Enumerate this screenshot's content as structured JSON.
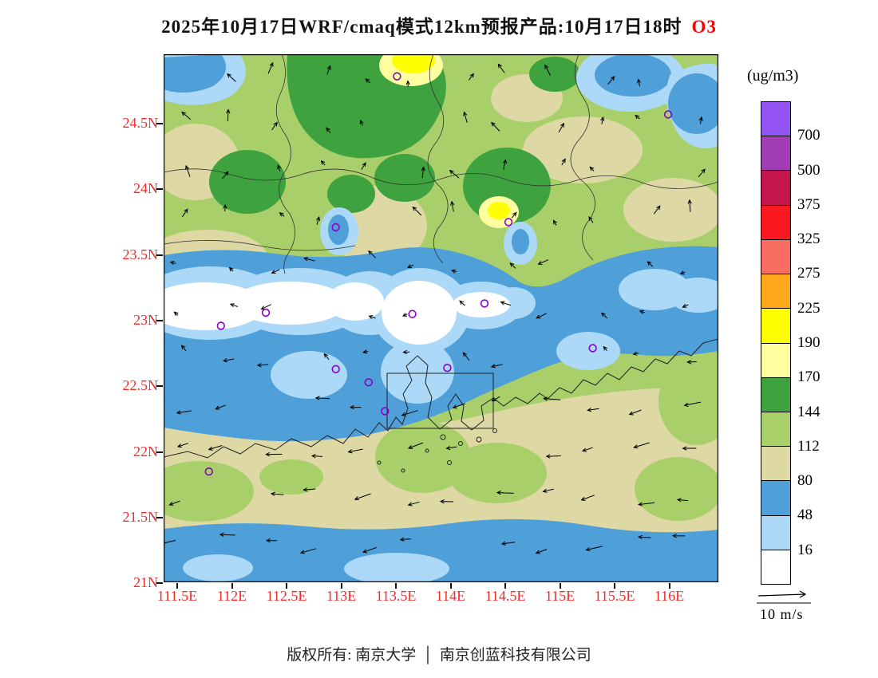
{
  "title": {
    "prefix": "2025年10月17日WRF/cmaq模式12km预报产品:10月17日18时",
    "species": "O3"
  },
  "colorbar": {
    "units_label": "(ug/m3)",
    "boundary_labels": [
      "700",
      "500",
      "375",
      "325",
      "275",
      "225",
      "190",
      "170",
      "144",
      "112",
      "80",
      "48",
      "16"
    ],
    "colors_top_to_bottom": [
      "#9454f3",
      "#a23cb4",
      "#c4164c",
      "#fb1921",
      "#f96c62",
      "#ffa81e",
      "#ffff00",
      "#ffffa0",
      "#3ea23e",
      "#a8cf6a",
      "#ddd8a4",
      "#4f9fd9",
      "#abd9f7",
      "#ffffff"
    ]
  },
  "axes": {
    "lat_labels": [
      "24.5N",
      "24N",
      "23.5N",
      "23N",
      "22.5N",
      "22N",
      "21.5N",
      "21N"
    ],
    "lon_labels": [
      "111.5E",
      "112E",
      "112.5E",
      "113E",
      "113.5E",
      "114E",
      "114.5E",
      "115E",
      "115.5E",
      "116E"
    ],
    "label_color": "#f22a2a"
  },
  "wind_legend": {
    "label": "10 m/s"
  },
  "footer": {
    "text_left": "版权所有: 南京大学",
    "separator": "│",
    "text_right": "南京创蓝科技有限公司"
  },
  "chart_data": {
    "type": "heatmap",
    "title": "2025年10月17日WRF/cmaq模式12km预报产品:10月17日18时 O3",
    "variable": "O3",
    "units": "ug/m3",
    "lon_ticks": [
      111.5,
      112,
      112.5,
      113,
      113.5,
      114,
      114.5,
      115,
      115.5,
      116
    ],
    "lat_ticks": [
      21,
      21.5,
      22,
      22.5,
      23,
      23.5,
      24,
      24.5
    ],
    "lon_range": [
      111.4,
      116.45
    ],
    "lat_range": [
      21.0,
      25.05
    ],
    "level_boundaries": [
      16,
      48,
      80,
      112,
      144,
      170,
      190,
      225,
      275,
      325,
      375,
      500,
      700
    ],
    "palette_low_to_high": [
      "#ffffff",
      "#abd9f7",
      "#4f9fd9",
      "#ddd8a4",
      "#a8cf6a",
      "#3ea23e",
      "#ffffa0",
      "#ffff00",
      "#ffa81e",
      "#f96c62",
      "#fb1921",
      "#c4164c",
      "#a23cb4",
      "#9454f3"
    ],
    "stations_lonlat": [
      [
        113.51,
        24.86
      ],
      [
        115.99,
        24.57
      ],
      [
        112.95,
        23.71
      ],
      [
        114.53,
        23.75
      ],
      [
        114.31,
        23.13
      ],
      [
        113.65,
        23.05
      ],
      [
        111.9,
        22.96
      ],
      [
        112.31,
        23.06
      ],
      [
        115.3,
        22.79
      ],
      [
        112.95,
        22.63
      ],
      [
        113.25,
        22.53
      ],
      [
        113.97,
        22.64
      ],
      [
        113.4,
        22.31
      ],
      [
        111.79,
        21.85
      ]
    ],
    "field_summary": [
      {
        "area": "north 23.5N-25N",
        "o3_ugm3": "112-170 greens with 80-112 tan patches, small >170-225 yellow spots, 16-80 blue pockets"
      },
      {
        "area": "belt 22.9N-23.3N across west and delta",
        "o3_ugm3": "<16-48 minimum band (white/light blue)"
      },
      {
        "area": "band 22.2N-22.9N",
        "o3_ugm3": "48-80 blue"
      },
      {
        "area": "southeast offshore 21.3N-22.3N",
        "o3_ugm3": "80-144 tan/light green"
      },
      {
        "area": "southern edge ~21N-21.3N",
        "o3_ugm3": "48-80 blue strip"
      }
    ],
    "wind": {
      "reference_vector_mps": 10,
      "pattern": "light northerly over inland north, easterly over southern coastal waters"
    }
  }
}
